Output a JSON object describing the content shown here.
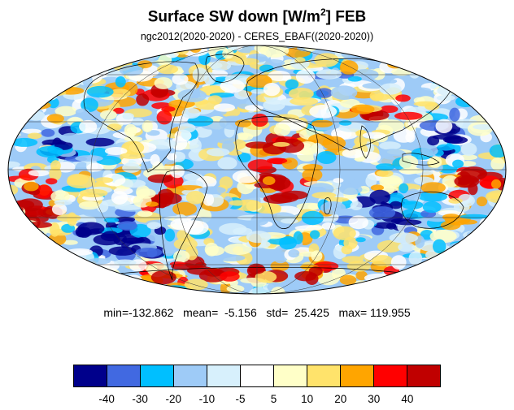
{
  "title": {
    "main": "Surface SW down [W/m",
    "sup": "2",
    "after": "]  FEB"
  },
  "subtitle": "ngc2012(2020-2020) - CERES_EBAF((2020-2020))",
  "stats": {
    "text": "min=-132.862   mean=  -5.156   std=  25.425   max= 119.955",
    "min": -132.862,
    "mean": -5.156,
    "std": 25.425,
    "max": 119.955
  },
  "map": {
    "projection": "mollweide",
    "variable": "surface shortwave down difference",
    "units": "W/m2",
    "month": "FEB"
  },
  "colorbar": {
    "colors": [
      "#00008b",
      "#4169e1",
      "#00bfff",
      "#9ecbf7",
      "#d7f0fc",
      "#ffffff",
      "#ffffc8",
      "#ffe36b",
      "#ffa500",
      "#ff0000",
      "#c00000"
    ],
    "tick_labels": [
      "-40",
      "-30",
      "-20",
      "-10",
      "-5",
      "5",
      "10",
      "20",
      "30",
      "40"
    ]
  }
}
